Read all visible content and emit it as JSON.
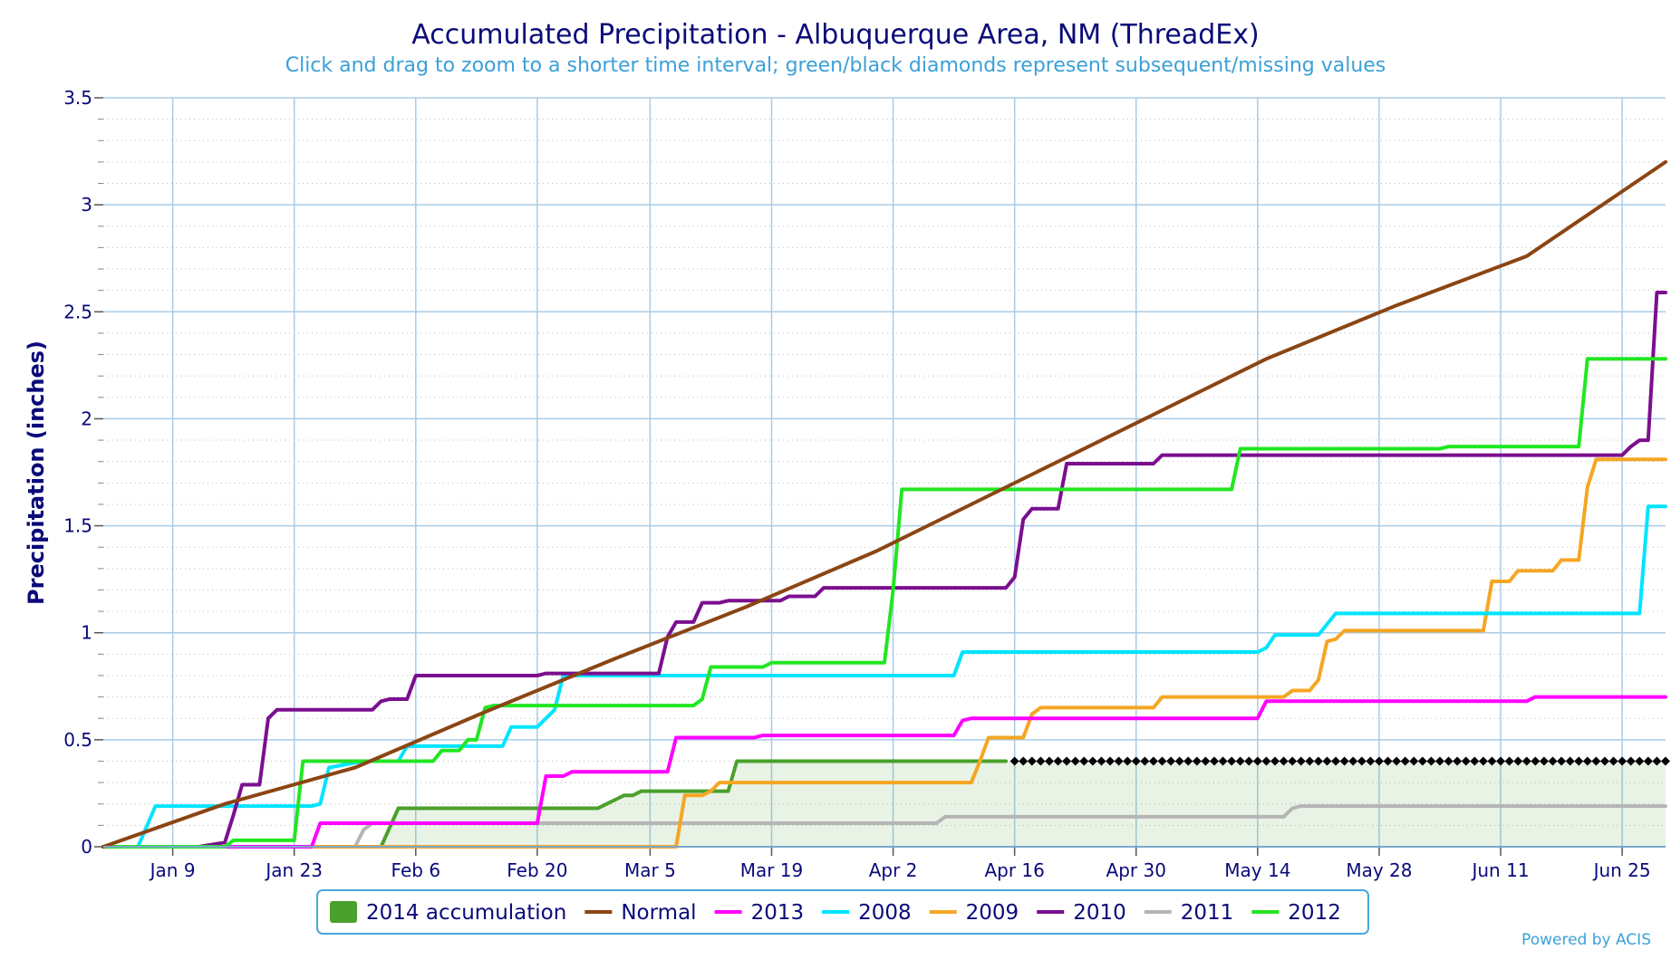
{
  "chart_data": {
    "type": "line",
    "title": "Accumulated Precipitation - Albuquerque Area, NM (ThreadEx)",
    "subtitle": "Click and drag to zoom to a shorter time interval; green/black diamonds represent subsequent/missing values",
    "ylabel": "Precipitation (inches)",
    "xlabel": "",
    "x_range": [
      1,
      181
    ],
    "ylim": [
      0,
      3.5
    ],
    "y_ticks": [
      0,
      0.5,
      1,
      1.5,
      2,
      2.5,
      3,
      3.5
    ],
    "y_tick_labels": [
      "0",
      "0.5",
      "1",
      "1.5",
      "2",
      "2.5",
      "3",
      "3.5"
    ],
    "x_tick_days": [
      9,
      23,
      37,
      51,
      64,
      78,
      92,
      106,
      120,
      134,
      148,
      162,
      176
    ],
    "x_tick_labels": [
      "Jan 9",
      "Jan 23",
      "Feb 6",
      "Feb 20",
      "Mar 5",
      "Mar 19",
      "Apr 2",
      "Apr 16",
      "Apr 30",
      "May 14",
      "May 28",
      "Jun 11",
      "Jun 25"
    ],
    "grid": true,
    "legend_position": "bottom",
    "missing_markers": {
      "color": "#000000",
      "y": 0.4,
      "from_day": 106,
      "to_day": 181
    },
    "series": [
      {
        "name": "2014 accumulation",
        "color": "#4aa02c",
        "style": "area",
        "points": [
          [
            1,
            0
          ],
          [
            33,
            0
          ],
          [
            34,
            0.09
          ],
          [
            35,
            0.18
          ],
          [
            58,
            0.18
          ],
          [
            59,
            0.2
          ],
          [
            60,
            0.22
          ],
          [
            61,
            0.24
          ],
          [
            62,
            0.24
          ],
          [
            63,
            0.26
          ],
          [
            73,
            0.26
          ],
          [
            74,
            0.4
          ],
          [
            105,
            0.4
          ]
        ]
      },
      {
        "name": "Normal",
        "color": "#8b4513",
        "style": "line",
        "points": [
          [
            1,
            0
          ],
          [
            15,
            0.2
          ],
          [
            30,
            0.37
          ],
          [
            45,
            0.63
          ],
          [
            60,
            0.88
          ],
          [
            75,
            1.12
          ],
          [
            90,
            1.38
          ],
          [
            105,
            1.68
          ],
          [
            120,
            1.98
          ],
          [
            135,
            2.28
          ],
          [
            150,
            2.53
          ],
          [
            165,
            2.76
          ],
          [
            181,
            3.2
          ]
        ]
      },
      {
        "name": "2013",
        "color": "#ff00ff",
        "style": "line",
        "points": [
          [
            1,
            0
          ],
          [
            25,
            0
          ],
          [
            26,
            0.11
          ],
          [
            31,
            0.11
          ],
          [
            32,
            0.11
          ],
          [
            51,
            0.11
          ],
          [
            52,
            0.33
          ],
          [
            54,
            0.33
          ],
          [
            55,
            0.35
          ],
          [
            66,
            0.35
          ],
          [
            67,
            0.51
          ],
          [
            76,
            0.51
          ],
          [
            77,
            0.52
          ],
          [
            99,
            0.52
          ],
          [
            100,
            0.59
          ],
          [
            101,
            0.6
          ],
          [
            134,
            0.6
          ],
          [
            135,
            0.68
          ],
          [
            165,
            0.68
          ],
          [
            166,
            0.7
          ],
          [
            181,
            0.7
          ]
        ]
      },
      {
        "name": "2008",
        "color": "#00e5ff",
        "style": "line",
        "points": [
          [
            1,
            0
          ],
          [
            5,
            0
          ],
          [
            7,
            0.19
          ],
          [
            25,
            0.19
          ],
          [
            26,
            0.2
          ],
          [
            27,
            0.37
          ],
          [
            31,
            0.4
          ],
          [
            35,
            0.4
          ],
          [
            36,
            0.47
          ],
          [
            47,
            0.47
          ],
          [
            48,
            0.56
          ],
          [
            51,
            0.56
          ],
          [
            53,
            0.64
          ],
          [
            54,
            0.8
          ],
          [
            99,
            0.8
          ],
          [
            100,
            0.91
          ],
          [
            134,
            0.91
          ],
          [
            135,
            0.93
          ],
          [
            136,
            0.99
          ],
          [
            141,
            0.99
          ],
          [
            143,
            1.09
          ],
          [
            178,
            1.09
          ],
          [
            179,
            1.59
          ],
          [
            181,
            1.59
          ]
        ]
      },
      {
        "name": "2009",
        "color": "#f5a623",
        "style": "line",
        "points": [
          [
            1,
            0
          ],
          [
            67,
            0
          ],
          [
            68,
            0.24
          ],
          [
            70,
            0.24
          ],
          [
            71,
            0.26
          ],
          [
            72,
            0.3
          ],
          [
            101,
            0.3
          ],
          [
            102,
            0.4
          ],
          [
            103,
            0.51
          ],
          [
            107,
            0.51
          ],
          [
            108,
            0.62
          ],
          [
            109,
            0.65
          ],
          [
            122,
            0.65
          ],
          [
            123,
            0.7
          ],
          [
            137,
            0.7
          ],
          [
            138,
            0.73
          ],
          [
            140,
            0.73
          ],
          [
            141,
            0.78
          ],
          [
            142,
            0.96
          ],
          [
            143,
            0.97
          ],
          [
            144,
            1.01
          ],
          [
            160,
            1.01
          ],
          [
            161,
            1.24
          ],
          [
            163,
            1.24
          ],
          [
            164,
            1.29
          ],
          [
            168,
            1.29
          ],
          [
            169,
            1.34
          ],
          [
            171,
            1.34
          ],
          [
            172,
            1.68
          ],
          [
            173,
            1.81
          ],
          [
            181,
            1.81
          ]
        ]
      },
      {
        "name": "2010",
        "color": "#7b0f8f",
        "style": "line",
        "points": [
          [
            1,
            0
          ],
          [
            12,
            0
          ],
          [
            15,
            0.02
          ],
          [
            16,
            0.15
          ],
          [
            17,
            0.29
          ],
          [
            19,
            0.29
          ],
          [
            20,
            0.6
          ],
          [
            21,
            0.64
          ],
          [
            32,
            0.64
          ],
          [
            33,
            0.68
          ],
          [
            34,
            0.69
          ],
          [
            36,
            0.69
          ],
          [
            37,
            0.8
          ],
          [
            51,
            0.8
          ],
          [
            52,
            0.81
          ],
          [
            65,
            0.81
          ],
          [
            66,
            0.98
          ],
          [
            67,
            1.05
          ],
          [
            69,
            1.05
          ],
          [
            70,
            1.14
          ],
          [
            72,
            1.14
          ],
          [
            73,
            1.15
          ],
          [
            79,
            1.15
          ],
          [
            80,
            1.17
          ],
          [
            83,
            1.17
          ],
          [
            84,
            1.21
          ],
          [
            105,
            1.21
          ],
          [
            106,
            1.26
          ],
          [
            107,
            1.53
          ],
          [
            108,
            1.58
          ],
          [
            111,
            1.58
          ],
          [
            112,
            1.79
          ],
          [
            122,
            1.79
          ],
          [
            123,
            1.83
          ],
          [
            176,
            1.83
          ],
          [
            177,
            1.87
          ],
          [
            178,
            1.9
          ],
          [
            179,
            1.9
          ],
          [
            180,
            2.59
          ],
          [
            181,
            2.59
          ]
        ]
      },
      {
        "name": "2011",
        "color": "#b5b5b5",
        "style": "line",
        "points": [
          [
            1,
            0
          ],
          [
            30,
            0
          ],
          [
            31,
            0.08
          ],
          [
            32,
            0.11
          ],
          [
            97,
            0.11
          ],
          [
            98,
            0.14
          ],
          [
            137,
            0.14
          ],
          [
            138,
            0.18
          ],
          [
            139,
            0.19
          ],
          [
            181,
            0.19
          ]
        ]
      },
      {
        "name": "2012",
        "color": "#22e622",
        "style": "line",
        "points": [
          [
            1,
            0
          ],
          [
            15,
            0
          ],
          [
            16,
            0.03
          ],
          [
            23,
            0.03
          ],
          [
            24,
            0.4
          ],
          [
            39,
            0.4
          ],
          [
            40,
            0.45
          ],
          [
            42,
            0.45
          ],
          [
            43,
            0.5
          ],
          [
            44,
            0.5
          ],
          [
            45,
            0.65
          ],
          [
            46,
            0.66
          ],
          [
            69,
            0.66
          ],
          [
            70,
            0.69
          ],
          [
            71,
            0.84
          ],
          [
            77,
            0.84
          ],
          [
            78,
            0.86
          ],
          [
            91,
            0.86
          ],
          [
            92,
            1.2
          ],
          [
            93,
            1.67
          ],
          [
            131,
            1.67
          ],
          [
            132,
            1.86
          ],
          [
            155,
            1.86
          ],
          [
            156,
            1.87
          ],
          [
            171,
            1.87
          ],
          [
            172,
            2.28
          ],
          [
            181,
            2.28
          ]
        ]
      }
    ]
  },
  "footer": {
    "powered_by": "Powered by ACIS"
  }
}
